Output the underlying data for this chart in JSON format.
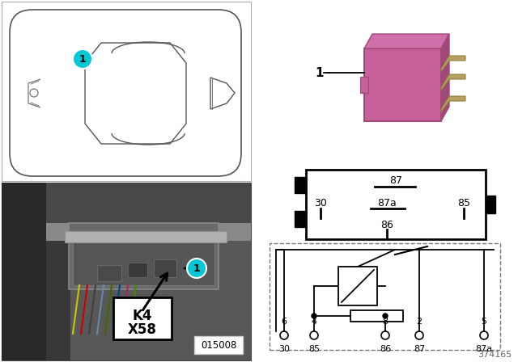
{
  "bg_color": "#ffffff",
  "diagram_number": "374165",
  "photo_label": "015008",
  "relay_color": "#c8609a",
  "relay_color_dark": "#a04878",
  "relay_color_top": "#d070aa",
  "callout_color": "#00c8d4",
  "pin_box_labels": {
    "87_top": "87",
    "30_left": "30",
    "87a_mid": "87a",
    "85_right": "85",
    "86_bot": "86"
  },
  "schematic_terminals_top": [
    "6",
    "4",
    "8",
    "2",
    "5"
  ],
  "schematic_terminals_bot": [
    "30",
    "85",
    "86",
    "87",
    "87a"
  ]
}
